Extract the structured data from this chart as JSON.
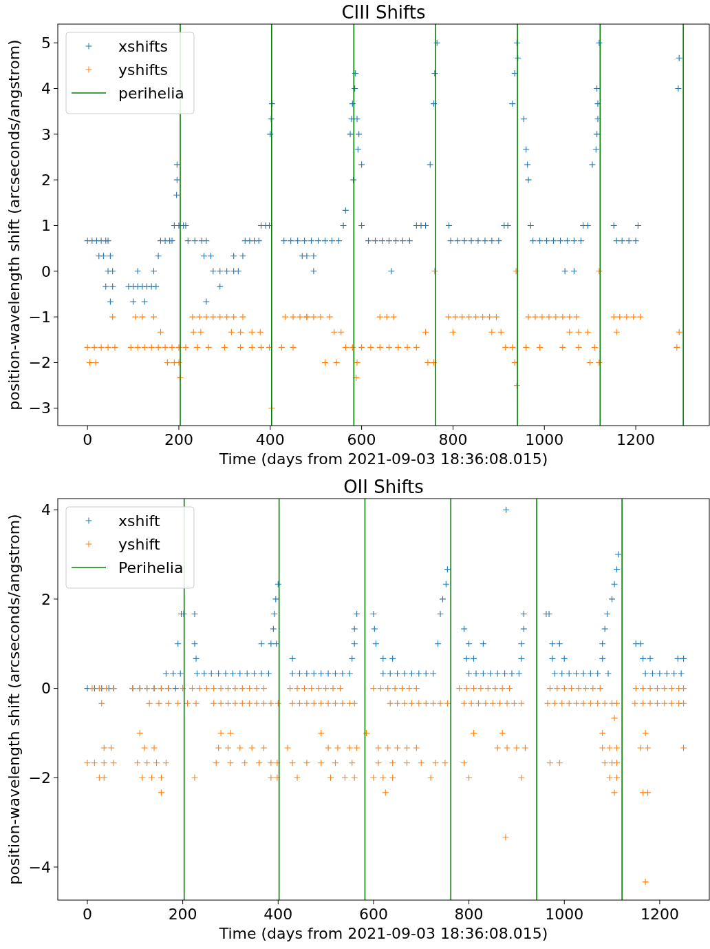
{
  "chart_data": [
    {
      "type": "scatter",
      "title": "CIII Shifts",
      "xlabel": "Time (days from 2021-09-03 18:36:08.015)",
      "ylabel": "position-wavelength shift (arcseconds/angstrom)",
      "xlim": [
        -65,
        1361
      ],
      "ylim": [
        -3.38,
        5.41
      ],
      "xticks": [
        0,
        200,
        400,
        600,
        800,
        1000,
        1200
      ],
      "yticks": [
        {
          "value": -3,
          "label": "−3"
        },
        {
          "value": -2,
          "label": "−2"
        },
        {
          "value": -1,
          "label": "−1"
        },
        0,
        1,
        2,
        3,
        4,
        5
      ],
      "grid": false,
      "legend": "top left",
      "marker": "cross",
      "series": [
        {
          "name": "xshifts",
          "color": "#1f77b4",
          "x": [
            0,
            10,
            20,
            30,
            40,
            45,
            25,
            35,
            50,
            45,
            55,
            40,
            55,
            50,
            90,
            100,
            110,
            120,
            130,
            140,
            150,
            100,
            125,
            110,
            145,
            155,
            160,
            170,
            180,
            185,
            190,
            200,
            210,
            215,
            196,
            196,
            195,
            220,
            235,
            250,
            260,
            255,
            270,
            275,
            290,
            305,
            320,
            330,
            290,
            260,
            320,
            340,
            345,
            355,
            365,
            375,
            380,
            390,
            398,
            400,
            402,
            404,
            430,
            445,
            460,
            475,
            490,
            505,
            520,
            535,
            550,
            470,
            480,
            495,
            495,
            560,
            565,
            575,
            578,
            580,
            582,
            585,
            586,
            590,
            594,
            592,
            600,
            600,
            615,
            630,
            645,
            660,
            675,
            690,
            705,
            665,
            720,
            730,
            740,
            750,
            758,
            760,
            765,
            791,
            795,
            810,
            825,
            840,
            855,
            870,
            885,
            900,
            912,
            920,
            930,
            935,
            940,
            942,
            955,
            960,
            963,
            965,
            970,
            975,
            990,
            1005,
            1020,
            1035,
            1050,
            1065,
            1080,
            1045,
            1065,
            1085,
            1095,
            1105,
            1113,
            1115,
            1117,
            1117,
            1115,
            1120,
            1152,
            1158,
            1170,
            1185,
            1200,
            1205,
            1293,
            1295
          ],
          "values": [
            0.667,
            0.667,
            0.667,
            0.667,
            0.667,
            0.667,
            0.333,
            0.333,
            0.333,
            0,
            0,
            -0.333,
            -0.333,
            -0.667,
            -0.333,
            -0.333,
            -0.333,
            -0.333,
            -0.333,
            -0.333,
            -0.333,
            -0.667,
            -0.667,
            0,
            0,
            0.333,
            0.667,
            0.667,
            0.667,
            0.667,
            1,
            1,
            1,
            1,
            2.333,
            2,
            1.667,
            0.667,
            0.667,
            0.667,
            0.667,
            0.333,
            0.333,
            0,
            0,
            0,
            0,
            0,
            -0.333,
            -0.667,
            0.333,
            0.333,
            0.667,
            0.667,
            0.667,
            0.667,
            1,
            1,
            1,
            3,
            3.333,
            3.667,
            0.667,
            0.667,
            0.667,
            0.667,
            0.667,
            0.667,
            0.667,
            0.667,
            0.667,
            0.333,
            0.333,
            0.333,
            0,
            1,
            1.333,
            3,
            3.333,
            3.667,
            2,
            4,
            4.333,
            3.333,
            3,
            2.667,
            2.333,
            1,
            0.667,
            0.667,
            0.667,
            0.667,
            0.667,
            0.667,
            0.667,
            0,
            1,
            1,
            1,
            2.333,
            3.667,
            4.333,
            5,
            1,
            0.667,
            0.667,
            0.667,
            0.667,
            0.667,
            0.667,
            0.667,
            0.667,
            1,
            1,
            3.667,
            4.333,
            5,
            4.667,
            3.333,
            2.667,
            2.333,
            2,
            1,
            0.667,
            0.667,
            0.667,
            0.667,
            0.667,
            0.667,
            0.667,
            0.667,
            0,
            0,
            1,
            1,
            2.333,
            2.667,
            3,
            3.333,
            3.667,
            4,
            5,
            1,
            0.667,
            0.667,
            0.667,
            0.667,
            1,
            4,
            4.667
          ]
        },
        {
          "name": "yshifts",
          "color": "#ff7f0e",
          "x": [
            0,
            15,
            30,
            45,
            60,
            5,
            18,
            55,
            95,
            110,
            125,
            140,
            155,
            170,
            185,
            200,
            105,
            120,
            145,
            160,
            175,
            190,
            200,
            203,
            230,
            245,
            260,
            275,
            290,
            305,
            320,
            340,
            215,
            240,
            265,
            300,
            335,
            360,
            380,
            398,
            232,
            248,
            315,
            335,
            360,
            378,
            403,
            433,
            450,
            465,
            480,
            495,
            510,
            530,
            425,
            450,
            480,
            540,
            555,
            520,
            545,
            565,
            580,
            590,
            588,
            640,
            655,
            670,
            600,
            620,
            640,
            660,
            680,
            700,
            720,
            740,
            745,
            758,
            760,
            790,
            805,
            820,
            835,
            850,
            865,
            880,
            895,
            800,
            885,
            905,
            915,
            930,
            935,
            940,
            938,
            965,
            980,
            995,
            1010,
            1025,
            1040,
            1055,
            1070,
            960,
            990,
            1040,
            1075,
            1110,
            1055,
            1075,
            1095,
            1100,
            1120,
            1120,
            1152,
            1165,
            1180,
            1195,
            1210,
            1158,
            1290,
            1295
          ],
          "values": [
            -1.667,
            -1.667,
            -1.667,
            -1.667,
            -1.667,
            -2,
            -2,
            -1,
            -1.667,
            -1.667,
            -1.667,
            -1.667,
            -1.667,
            -1.667,
            -1.667,
            -1.667,
            -1,
            -1,
            -1,
            -1.333,
            -2,
            -2,
            -2,
            -2.333,
            -1,
            -1,
            -1,
            -1,
            -1,
            -1,
            -1,
            -1,
            -1.667,
            -1.667,
            -1.667,
            -1.667,
            -1.667,
            -1.667,
            -1.667,
            -1.667,
            -1.333,
            -1.333,
            -1.333,
            -1.333,
            -1.333,
            -1.333,
            -3,
            -1,
            -1,
            -1,
            -1,
            -1,
            -1,
            -1,
            -1.667,
            -1.667,
            -1,
            -1.333,
            -1.333,
            -2,
            -2,
            -1.667,
            -1.667,
            -2,
            -2.333,
            -1,
            -1,
            -1,
            -1.667,
            -1.667,
            -1.667,
            -1.667,
            -1.667,
            -1.667,
            -1.667,
            -1.333,
            -2,
            -2,
            0,
            -1,
            -1,
            -1,
            -1,
            -1,
            -1,
            -1,
            -1,
            -1.333,
            -1.333,
            -1.333,
            -1.667,
            -1.667,
            -2,
            -2.5,
            0,
            -1,
            -1,
            -1,
            -1,
            -1,
            -1,
            -1,
            -1,
            -1.667,
            -1.667,
            -1.667,
            -1.667,
            -1.667,
            -1.333,
            -1.333,
            -1.333,
            -2,
            -2,
            0,
            -1,
            -1,
            -1,
            -1,
            -1,
            -1.333,
            -1.667,
            -1.333
          ]
        }
      ],
      "ref_lines": [
        {
          "axis": "x",
          "value": 203,
          "label": "perihelia",
          "color": "#008000"
        },
        {
          "axis": "x",
          "value": 403,
          "color": "#008000"
        },
        {
          "axis": "x",
          "value": 583,
          "color": "#008000"
        },
        {
          "axis": "x",
          "value": 762,
          "color": "#008000"
        },
        {
          "axis": "x",
          "value": 941,
          "color": "#008000"
        },
        {
          "axis": "x",
          "value": 1122,
          "color": "#008000"
        },
        {
          "axis": "x",
          "value": 1304,
          "color": "#008000"
        }
      ]
    },
    {
      "type": "scatter",
      "title": "OII Shifts",
      "xlabel": "Time (days from 2021-09-03 18:36:08.015)",
      "ylabel": "position-wavelength shift (arcseconds/angstrom)",
      "xlim": [
        -62,
        1304
      ],
      "ylim": [
        -4.74,
        4.25
      ],
      "xticks": [
        0,
        200,
        400,
        600,
        800,
        1000,
        1200
      ],
      "yticks": [
        {
          "value": -4,
          "label": "−4"
        },
        {
          "value": -2,
          "label": "−2"
        },
        0,
        2,
        4
      ],
      "grid": false,
      "legend": "top left",
      "marker": "cross",
      "series": [
        {
          "name": "xshift",
          "color": "#1f77b4",
          "x": [
            0,
            15,
            30,
            45,
            55,
            95,
            110,
            125,
            140,
            155,
            170,
            185,
            165,
            180,
            195,
            190,
            197,
            202,
            225,
            225,
            228,
            230,
            245,
            260,
            275,
            290,
            305,
            320,
            335,
            350,
            365,
            380,
            365,
            385,
            390,
            392,
            395,
            400,
            396,
            430,
            430,
            445,
            460,
            475,
            490,
            505,
            520,
            535,
            550,
            555,
            560,
            560,
            565,
            600,
            602,
            605,
            620,
            640,
            620,
            635,
            650,
            665,
            680,
            695,
            710,
            725,
            735,
            740,
            745,
            752,
            755,
            790,
            800,
            795,
            810,
            800,
            815,
            830,
            845,
            860,
            875,
            890,
            905,
            830,
            878,
            910,
            910,
            915,
            915,
            962,
            968,
            975,
            990,
            975,
            1000,
            980,
            995,
            1010,
            1025,
            1040,
            1055,
            1070,
            1080,
            1080,
            1085,
            1090,
            1100,
            1105,
            1110,
            1113,
            1092,
            1150,
            1160,
            1165,
            1180,
            1170,
            1185,
            1200,
            1215,
            1230,
            1245,
            1238,
            1250
          ],
          "values": [
            0,
            0,
            0,
            0,
            0,
            0,
            0,
            0,
            0,
            0,
            0,
            0,
            0.333,
            0.333,
            0.333,
            1,
            1.667,
            1.667,
            1.667,
            1,
            0.667,
            0.333,
            0.333,
            0.333,
            0.333,
            0.333,
            0.333,
            0.333,
            0.333,
            0.333,
            0.333,
            0.333,
            1,
            1,
            1.333,
            1.667,
            2,
            2.333,
            1,
            0.667,
            0.333,
            0.333,
            0.333,
            0.333,
            0.333,
            0.333,
            0.333,
            0.333,
            0.333,
            0.667,
            1,
            1.333,
            1.667,
            1.667,
            1.333,
            1,
            0.667,
            0.667,
            0.333,
            0.333,
            0.333,
            0.333,
            0.333,
            0.333,
            0.333,
            0.333,
            1,
            1.667,
            2,
            2.333,
            2.667,
            1.333,
            1,
            0.667,
            0.667,
            0.333,
            0.333,
            0.333,
            0.333,
            0.333,
            0.333,
            0.333,
            0.333,
            1,
            4,
            1,
            0.667,
            1.667,
            1.333,
            1.667,
            1.667,
            1,
            1,
            0.667,
            0.667,
            0.333,
            0.333,
            0.333,
            0.333,
            0.333,
            0.333,
            0.333,
            0.667,
            1,
            1.333,
            1.667,
            2,
            2.333,
            2.667,
            3,
            0.333,
            1,
            1,
            0.667,
            0.667,
            0.333,
            0.333,
            0.333,
            0.333,
            0.333,
            0.333,
            0.667,
            0.667
          ]
        },
        {
          "name": "yshift",
          "color": "#ff7f0e",
          "x": [
            10,
            25,
            40,
            55,
            30,
            0,
            15,
            35,
            55,
            25,
            35,
            35,
            50,
            95,
            110,
            125,
            140,
            155,
            170,
            130,
            150,
            170,
            190,
            210,
            228,
            200,
            220,
            235,
            105,
            125,
            145,
            165,
            115,
            135,
            155,
            155,
            120,
            140,
            110,
            250,
            265,
            280,
            295,
            310,
            325,
            340,
            355,
            370,
            265,
            280,
            295,
            310,
            325,
            340,
            355,
            370,
            385,
            400,
            275,
            295,
            320,
            345,
            370,
            270,
            300,
            330,
            360,
            385,
            398,
            385,
            398,
            280,
            300,
            225,
            425,
            440,
            455,
            470,
            485,
            500,
            515,
            530,
            430,
            445,
            460,
            475,
            490,
            505,
            520,
            535,
            550,
            560,
            420,
            505,
            525,
            550,
            565,
            430,
            460,
            490,
            520,
            555,
            440,
            510,
            540,
            560,
            490,
            600,
            615,
            630,
            645,
            660,
            675,
            690,
            635,
            650,
            665,
            680,
            695,
            710,
            725,
            740,
            755,
            610,
            630,
            650,
            670,
            690,
            610,
            640,
            670,
            700,
            730,
            750,
            600,
            620,
            640,
            720,
            625,
            585,
            780,
            795,
            810,
            825,
            840,
            855,
            870,
            885,
            790,
            805,
            820,
            835,
            850,
            865,
            880,
            895,
            910,
            860,
            880,
            900,
            918,
            790,
            800,
            910,
            810,
            870,
            877,
            970,
            985,
            1000,
            1015,
            1030,
            1045,
            1060,
            1075,
            965,
            980,
            995,
            1010,
            1025,
            1040,
            1055,
            1070,
            1085,
            1100,
            1110,
            1080,
            1095,
            1110,
            970,
            990,
            1085,
            1100,
            1110,
            1095,
            1110,
            1105,
            1105,
            1080,
            1150,
            1165,
            1180,
            1195,
            1210,
            1225,
            1240,
            1250,
            1148,
            1165,
            1180,
            1195,
            1210,
            1225,
            1240,
            1250,
            1160,
            1175,
            1250,
            1165,
            1175,
            1170,
            1170
          ],
          "values": [
            0,
            0,
            0,
            0,
            -0.333,
            -1.667,
            -1.667,
            -1.667,
            -1.667,
            -2,
            -2,
            -1.333,
            -1.333,
            0,
            0,
            0,
            0,
            0,
            0,
            -0.333,
            -0.333,
            -0.333,
            -0.333,
            -0.333,
            -0.333,
            0,
            0,
            0,
            -1.667,
            -1.667,
            -1.667,
            -1.667,
            -2,
            -2,
            -2,
            -2.333,
            -1.333,
            -1.333,
            -1,
            0,
            0,
            0,
            0,
            0,
            0,
            0,
            0,
            0,
            -0.333,
            -0.333,
            -0.333,
            -0.333,
            -0.333,
            -0.333,
            -0.333,
            -0.333,
            -0.333,
            -0.333,
            -1.333,
            -1.333,
            -1.333,
            -1.333,
            -1.333,
            -1.667,
            -1.667,
            -1.667,
            -1.667,
            -1.667,
            -1.667,
            -2,
            -2,
            -1,
            -1,
            -2,
            0,
            0,
            0,
            0,
            0,
            0,
            0,
            0,
            -0.333,
            -0.333,
            -0.333,
            -0.333,
            -0.333,
            -0.333,
            -0.333,
            -0.333,
            -0.333,
            -0.333,
            -1.333,
            -1.333,
            -1.333,
            -1.333,
            -1.333,
            -1.667,
            -1.667,
            -1.667,
            -1.667,
            -1.667,
            -2,
            -2,
            -2,
            -2,
            -1,
            0,
            0,
            0,
            0,
            0,
            0,
            0,
            -0.333,
            -0.333,
            -0.333,
            -0.333,
            -0.333,
            -0.333,
            -0.333,
            -0.333,
            -0.333,
            -1.333,
            -1.333,
            -1.333,
            -1.333,
            -1.333,
            -1.667,
            -1.667,
            -1.667,
            -1.667,
            -1.667,
            -1.667,
            -2,
            -2,
            -2,
            -2,
            -2.333,
            -1,
            0,
            0,
            0,
            0,
            0,
            0,
            0,
            0,
            -0.333,
            -0.333,
            -0.333,
            -0.333,
            -0.333,
            -0.333,
            -0.333,
            -0.333,
            -0.333,
            -1.333,
            -1.333,
            -1.333,
            -1.333,
            -1.667,
            -2,
            -2,
            -1,
            -1,
            -3.333,
            0,
            0,
            0,
            0,
            0,
            0,
            0,
            0,
            -0.333,
            -0.333,
            -0.333,
            -0.333,
            -0.333,
            -0.333,
            -0.333,
            -0.333,
            -0.333,
            -0.333,
            -0.333,
            -1.333,
            -1.333,
            -1.333,
            -1.667,
            -1.667,
            -1.667,
            -1.667,
            -1.667,
            -2,
            -2,
            -2.333,
            -0.667,
            -1,
            0,
            0,
            0,
            0,
            0,
            0,
            0,
            0,
            -0.333,
            -0.333,
            -0.333,
            -0.333,
            -0.333,
            -0.333,
            -0.333,
            -0.333,
            -1.333,
            -1.333,
            -1.333,
            -2.333,
            -2.333,
            -1,
            -4.333
          ]
        }
      ],
      "ref_lines": [
        {
          "axis": "x",
          "value": 203,
          "label": "Perihelia",
          "color": "#008000"
        },
        {
          "axis": "x",
          "value": 402,
          "color": "#008000"
        },
        {
          "axis": "x",
          "value": 582,
          "color": "#008000"
        },
        {
          "axis": "x",
          "value": 762,
          "color": "#008000"
        },
        {
          "axis": "x",
          "value": 942,
          "color": "#008000"
        },
        {
          "axis": "x",
          "value": 1121,
          "color": "#008000"
        }
      ]
    }
  ]
}
